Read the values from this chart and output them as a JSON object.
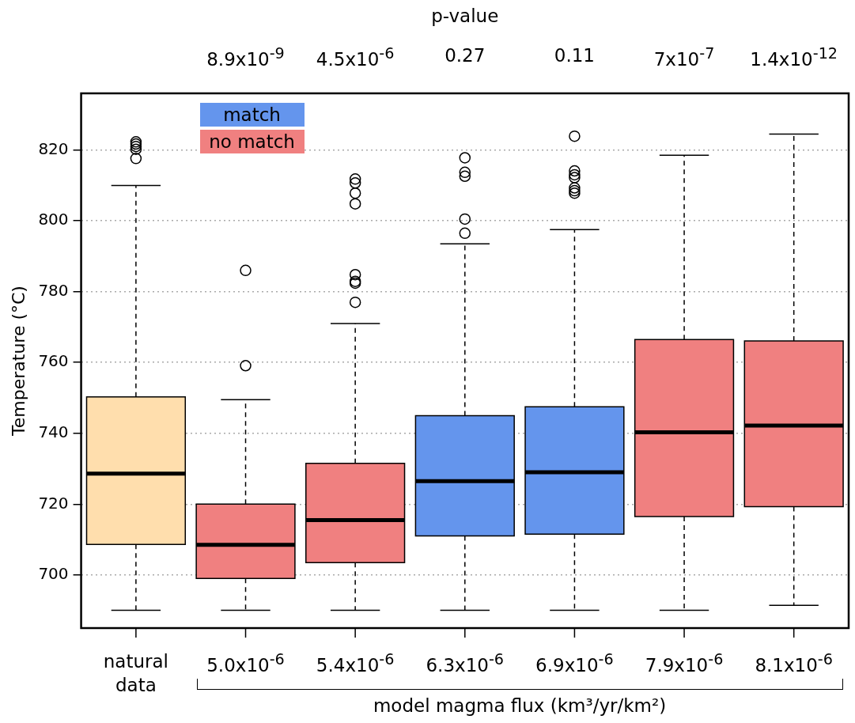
{
  "chart_data": {
    "type": "box",
    "x2label": "p-value",
    "ylabel": "Temperature (°C)",
    "xlabel": "model magma flux (km³/yr/km²)",
    "categories": [
      "natural\ndata",
      "5.0x10$^{-6}$",
      "5.4x10$^{-6}$",
      "6.3x10$^{-6}$",
      "6.9x10$^{-6}$",
      "7.9x10$^{-6}$",
      "8.1x10$^{-6}$"
    ],
    "annotations": [
      "8.9x10$^{-9}$",
      "4.5x10$^{-6}$",
      "0.27",
      "0.11",
      "7x10$^{-7}$",
      "1.4x10$^{-12}$"
    ],
    "ylim": [
      685,
      836
    ],
    "yticks": [
      700,
      720,
      740,
      760,
      780,
      800,
      820
    ],
    "grid": "y",
    "legend": "top left",
    "series": [
      {
        "color": "#ffdead",
        "boxes": [
          {
            "low": 690,
            "q1": 708.6,
            "median": 728.6,
            "q3": 750.3,
            "high": 810,
            "outliers": [
              822.3,
              821.7,
              821,
              820.2,
              817.6
            ]
          },
          null,
          null,
          null,
          null,
          null,
          null
        ]
      },
      {
        "name": "match",
        "color": "#6495ed",
        "boxes": [
          null,
          null,
          null,
          {
            "low": 690,
            "q1": 711,
            "median": 726.5,
            "q3": 745,
            "high": 793.5,
            "outliers": [
              817.8,
              813.7,
              812.6,
              800.5,
              796.5
            ]
          },
          {
            "low": 690,
            "q1": 711.5,
            "median": 729,
            "q3": 747.5,
            "high": 797.5,
            "outliers": [
              823.9,
              814.1,
              813,
              812.2,
              809.3,
              808.5,
              807.8
            ]
          },
          null,
          null
        ]
      },
      {
        "name": "no match",
        "color": "#f08080",
        "boxes": [
          null,
          {
            "low": 690,
            "q1": 699,
            "median": 708.5,
            "q3": 720,
            "high": 749.5,
            "outliers": [
              786,
              759.1
            ]
          },
          {
            "low": 690,
            "q1": 703.5,
            "median": 715.5,
            "q3": 731.5,
            "high": 771,
            "outliers": [
              811.8,
              810.7,
              807.8,
              804.8,
              784.8,
              782.9,
              782.4,
              777
            ]
          },
          null,
          null,
          {
            "low": 690,
            "q1": 716.5,
            "median": 740.3,
            "q3": 766.5,
            "high": 818.5
          },
          {
            "low": 691.4,
            "q1": 719.3,
            "median": 742.2,
            "q3": 766.1,
            "high": 824.5
          }
        ]
      }
    ]
  }
}
